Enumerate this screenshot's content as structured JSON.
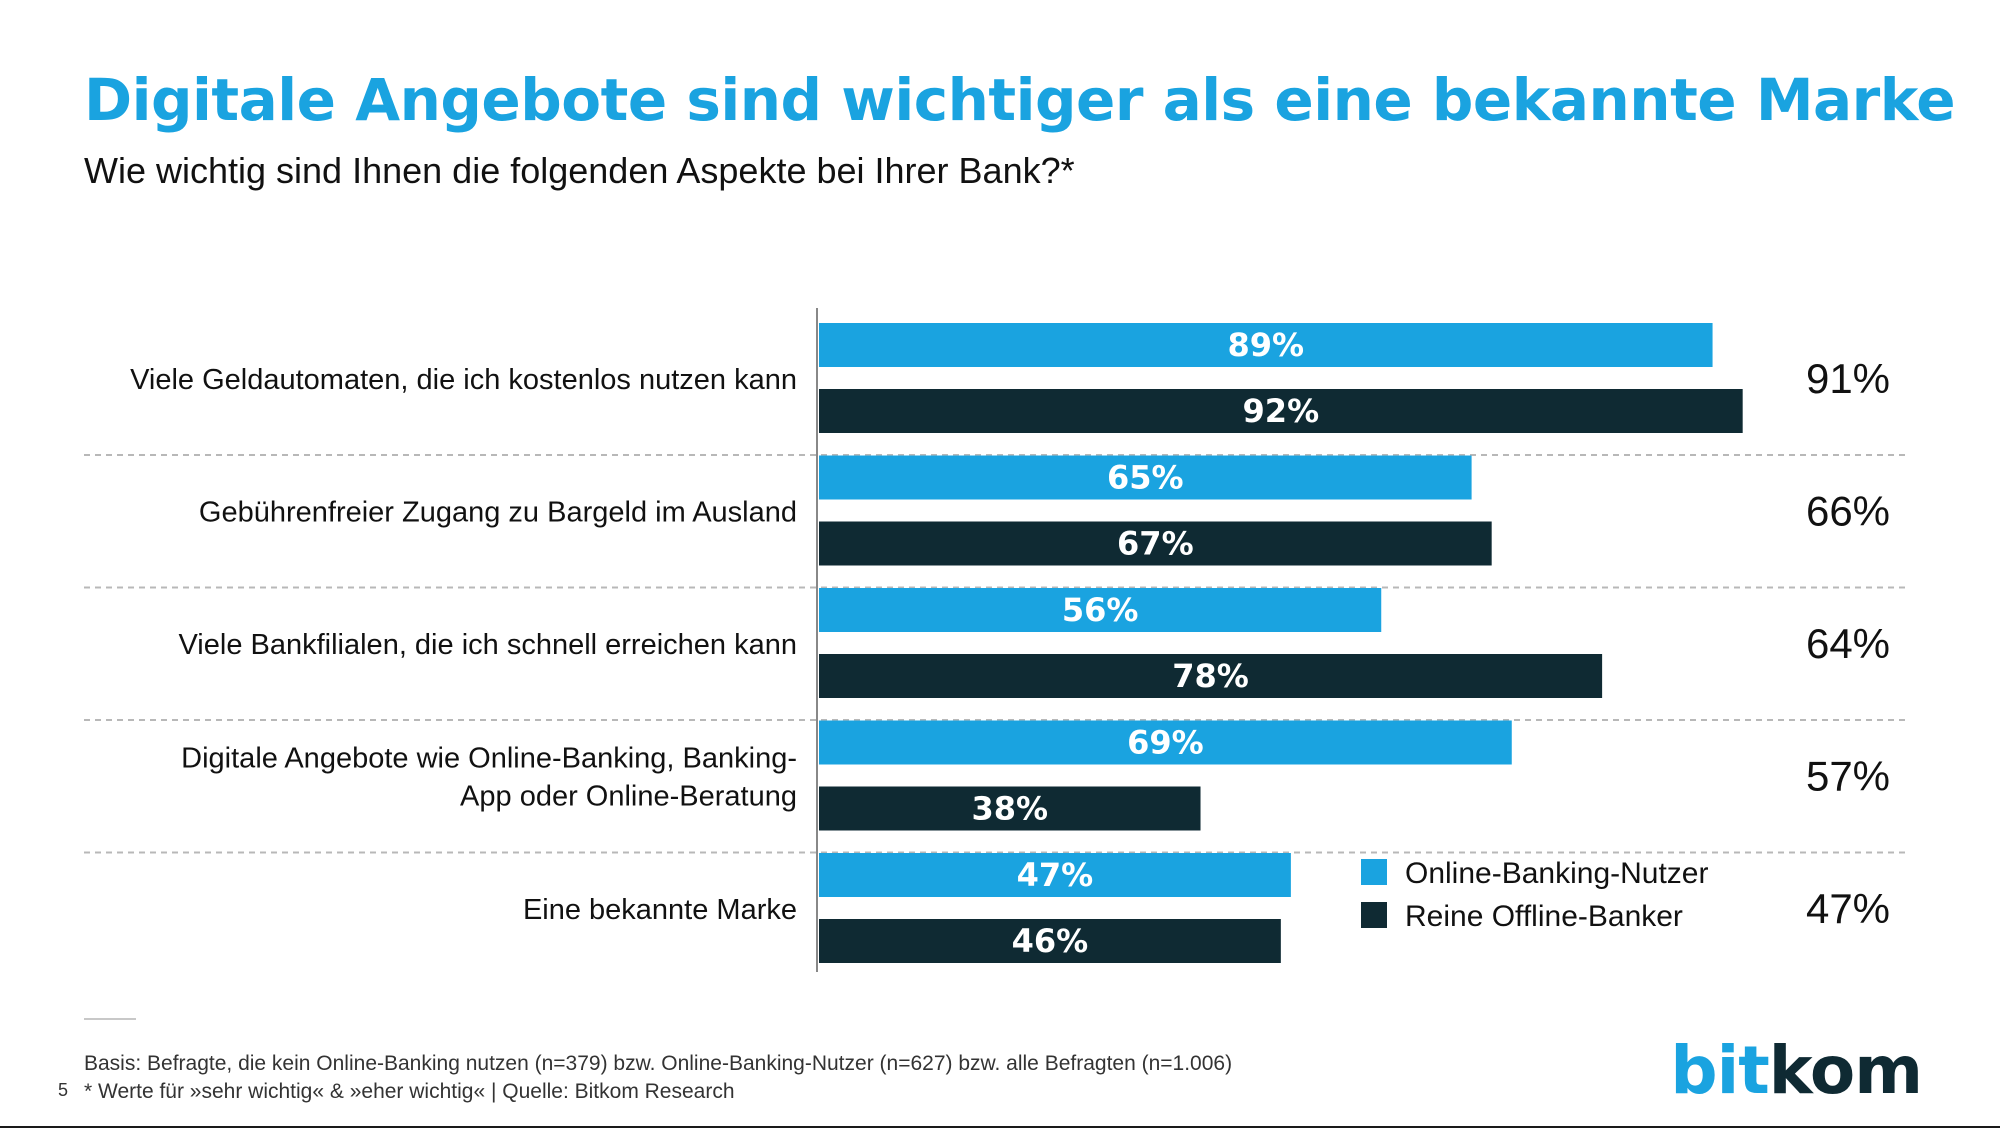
{
  "title": "Digitale Angebote sind wichtiger als eine bekannte Marke",
  "subtitle": "Wie wichtig sind Ihnen die folgenden Aspekte bei Ihrer Bank?*",
  "colors": {
    "accent": "#1aa3e0",
    "dark": "#0f2a33"
  },
  "chart_data": {
    "type": "bar",
    "orientation": "horizontal",
    "categories": [
      "Viele Geldautomaten, die ich kostenlos nutzen kann",
      "Gebührenfreier Zugang zu Bargeld im Ausland",
      "Viele Bankfilialen, die ich schnell erreichen kann",
      "Digitale Angebote wie Online-Banking, Banking-App oder Online-Beratung",
      "Eine bekannte Marke"
    ],
    "category_lines": [
      [
        "Viele Geldautomaten, die ich kostenlos nutzen kann"
      ],
      [
        "Gebührenfreier Zugang zu Bargeld im Ausland"
      ],
      [
        "Viele Bankfilialen, die ich schnell erreichen kann"
      ],
      [
        "Digitale Angebote wie Online-Banking, Banking-",
        "App oder Online-Beratung"
      ],
      [
        "Eine bekannte Marke"
      ]
    ],
    "series": [
      {
        "name": "Online-Banking-Nutzer",
        "color": "#1aa3e0",
        "values": [
          89,
          65,
          56,
          69,
          47
        ]
      },
      {
        "name": "Reine Offline-Banker",
        "color": "#0f2a33",
        "values": [
          92,
          67,
          78,
          38,
          46
        ]
      }
    ],
    "totals": [
      91,
      66,
      64,
      57,
      47
    ],
    "value_suffix": "%",
    "xlim": [
      0,
      100
    ],
    "legend_position": "bottom-right",
    "grid": false
  },
  "footnotes": [
    "Basis: Befragte, die kein Online-Banking nutzen (n=379) bzw. Online-Banking-Nutzer (n=627) bzw. alle Befragten (n=1.006)",
    "* Werte für »sehr wichtig« & »eher wichtig« |  Quelle: Bitkom Research"
  ],
  "page_number": "5",
  "logo": {
    "part1": "bit",
    "part2": "kom"
  }
}
